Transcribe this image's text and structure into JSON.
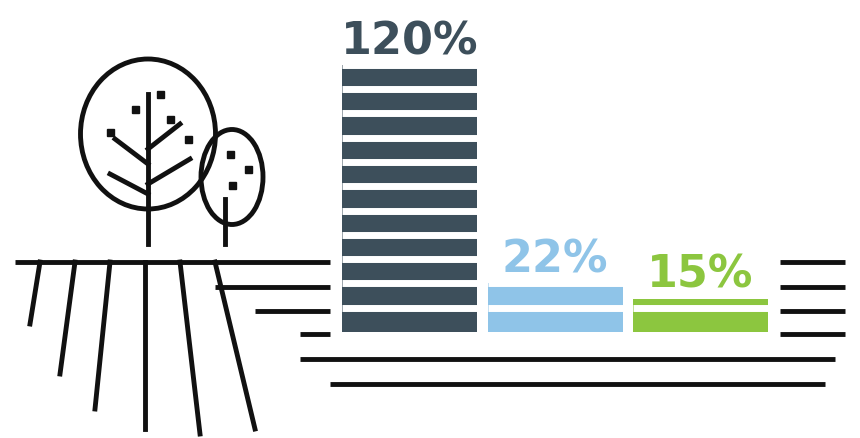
{
  "chart_data": {
    "type": "bar",
    "categories": [
      null,
      null,
      null
    ],
    "values": [
      120,
      22,
      15
    ],
    "value_labels": [
      "120%",
      "22%",
      "15%"
    ],
    "colors": [
      "#3d4f5b",
      "#8fc4e8",
      "#8cc63f"
    ],
    "data_labels": true,
    "tick_labels": false
  }
}
